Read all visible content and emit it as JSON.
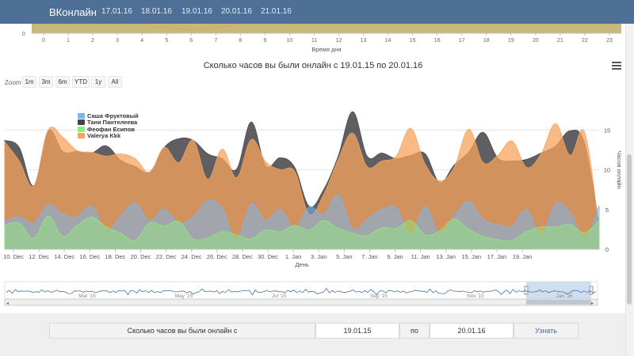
{
  "navbar": {
    "brand": "ВКонлайн",
    "dates": [
      "17.01.16",
      "18.01.16",
      "19.01.16",
      "20.01.16",
      "21.01.16"
    ]
  },
  "top_chart": {
    "y_tick": "0",
    "x_ticks": [
      "0",
      "1",
      "2",
      "3",
      "4",
      "5",
      "6",
      "7",
      "8",
      "9",
      "10",
      "11",
      "12",
      "13",
      "14",
      "15",
      "16",
      "17",
      "18",
      "19",
      "20",
      "21",
      "22",
      "23"
    ],
    "xlabel": "Время дня"
  },
  "title": "Сколько часов вы были онлайн с 19.01.15 по 20.01.16",
  "zoom": {
    "label": "Zoom",
    "buttons": [
      "1m",
      "3m",
      "6m",
      "YTD",
      "1y",
      "All"
    ]
  },
  "chart_data": {
    "type": "area",
    "title": "Сколько часов вы были онлайн с 19.01.15 по 20.01.16",
    "xlabel": "День",
    "ylabel": "Часов онлайн",
    "ylim": [
      0,
      20
    ],
    "y_ticks": [
      "0",
      "5",
      "10",
      "15"
    ],
    "x_ticks": [
      "10. Dec",
      "12. Dec",
      "14. Dec",
      "16. Dec",
      "18. Dec",
      "20. Dec",
      "22. Dec",
      "24. Dec",
      "26. Dec",
      "28. Dec",
      "30. Dec",
      "1. Jan",
      "3. Jan",
      "5. Jan",
      "7. Jan",
      "9. Jan",
      "11. Jan",
      "13. Jan",
      "15. Jan",
      "17. Jan",
      "19. Jan"
    ],
    "legend_position": "top-left",
    "series": [
      {
        "name": "Саша Фруктовый",
        "color": "#7cb5ec",
        "values": [
          3.5,
          4.1,
          3.3,
          5.6,
          4.4,
          4.1,
          5.4,
          2.3,
          4.2,
          5.8,
          3.6,
          5.1,
          3.3,
          4.1,
          6.1,
          5.2,
          1.3,
          5.7,
          3.6,
          5.0,
          2.7,
          5.3,
          4.4,
          6.8,
          2.6,
          3.8,
          5.0,
          5.2,
          1.9,
          5.4,
          2.0,
          4.2,
          6.0,
          3.8,
          3.1,
          2.9,
          5.0,
          1.8,
          5.7,
          4.7,
          1.4,
          5.5
        ]
      },
      {
        "name": "Таня Пантелеева",
        "color": "#434348",
        "values": [
          13.7,
          12.8,
          8.0,
          14.9,
          12.3,
          12.3,
          12.1,
          13.0,
          11.2,
          10.4,
          9.7,
          12.8,
          13.9,
          13.7,
          12.0,
          11.4,
          10.1,
          16.0,
          10.5,
          11.5,
          10.3,
          5.4,
          7.5,
          11.7,
          17.3,
          11.7,
          12.1,
          11.4,
          11.8,
          12.0,
          8.4,
          10.6,
          12.2,
          14.7,
          11.5,
          11.1,
          11.3,
          12.1,
          13.0,
          14.9,
          13.3,
          3.1
        ]
      },
      {
        "name": "Феофан Есипов",
        "color": "#90ed7d",
        "values": [
          3.0,
          3.3,
          1.4,
          4.2,
          1.6,
          3.0,
          4.0,
          2.8,
          2.0,
          1.1,
          3.3,
          2.9,
          3.5,
          1.3,
          1.4,
          2.2,
          1.8,
          1.3,
          2.4,
          2.2,
          3.0,
          2.4,
          3.6,
          2.6,
          2.0,
          1.7,
          2.7,
          2.6,
          3.6,
          1.8,
          2.3,
          3.8,
          2.5,
          1.6,
          1.2,
          1.1,
          2.2,
          2.8,
          2.8,
          3.1,
          2.1,
          3.6
        ]
      },
      {
        "name": "Valerya Kkk",
        "color": "#f7a35c",
        "values": [
          13.5,
          11.1,
          8.0,
          15.0,
          14.1,
          12.4,
          12.2,
          11.7,
          12.0,
          11.4,
          9.7,
          12.8,
          10.9,
          13.7,
          8.8,
          12.6,
          9.0,
          13.8,
          11.0,
          10.0,
          9.8,
          4.4,
          6.9,
          11.3,
          14.6,
          10.4,
          11.1,
          11.7,
          15.2,
          10.7,
          8.6,
          10.3,
          15.1,
          10.9,
          11.8,
          13.6,
          10.3,
          12.0,
          15.8,
          11.8,
          14.7,
          2.6
        ]
      }
    ]
  },
  "navigator": {
    "labels": [
      "Mar '15",
      "May '15",
      "Jul '15",
      "Sep '15",
      "Nov '15",
      "Jan '16"
    ]
  },
  "form": {
    "label": "Сколько часов вы были онлайн с",
    "date_from": "19.01.15",
    "sep": "по",
    "date_to": "20.01.16",
    "submit": "Узнать"
  },
  "colors": {
    "navbar": "#4e6f96",
    "top_chart_fill": "#c7b97a",
    "link": "#3b6ea5"
  }
}
